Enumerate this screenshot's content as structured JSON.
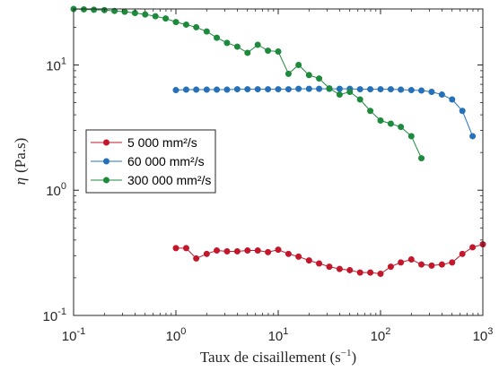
{
  "chart_data": {
    "type": "line",
    "xlabel_main": "Taux de cisaillement (s",
    "xlabel_sup": "−1",
    "xlabel_end": ")",
    "ylabel_sym": "η",
    "ylabel_unit": "(Pa.s)",
    "xscale": "log",
    "yscale": "log",
    "xlim": [
      0.1,
      1000
    ],
    "ylim": [
      0.1,
      28
    ],
    "x_ticks": [
      {
        "value": 0.1,
        "base": "10",
        "exp": "-1"
      },
      {
        "value": 1,
        "base": "10",
        "exp": "0"
      },
      {
        "value": 10,
        "base": "10",
        "exp": "1"
      },
      {
        "value": 100,
        "base": "10",
        "exp": "2"
      },
      {
        "value": 1000,
        "base": "10",
        "exp": "3"
      }
    ],
    "y_ticks": [
      {
        "value": 0.1,
        "base": "10",
        "exp": "-1"
      },
      {
        "value": 1,
        "base": "10",
        "exp": "0"
      },
      {
        "value": 10,
        "base": "10",
        "exp": "1"
      }
    ],
    "grid": false,
    "legend_position": "center-left",
    "series": [
      {
        "name": "5 000 mm²/s",
        "color": "#c3172b",
        "x": [
          1.0,
          1.26,
          1.58,
          2.0,
          2.51,
          3.16,
          3.98,
          5.01,
          6.31,
          7.94,
          10.0,
          12.6,
          15.8,
          20.0,
          25.1,
          31.6,
          39.8,
          50.1,
          63.1,
          79.4,
          100,
          126,
          158,
          200,
          251,
          316,
          398,
          501,
          631,
          794,
          1000
        ],
        "y": [
          0.345,
          0.345,
          0.285,
          0.31,
          0.33,
          0.325,
          0.325,
          0.33,
          0.33,
          0.32,
          0.335,
          0.31,
          0.295,
          0.275,
          0.26,
          0.245,
          0.235,
          0.23,
          0.22,
          0.22,
          0.215,
          0.245,
          0.265,
          0.28,
          0.255,
          0.25,
          0.255,
          0.265,
          0.31,
          0.35,
          0.37
        ]
      },
      {
        "name": "60 000 mm²/s",
        "color": "#2470b9",
        "x": [
          1.0,
          1.26,
          1.58,
          2.0,
          2.51,
          3.16,
          3.98,
          5.01,
          6.31,
          7.94,
          10.0,
          12.6,
          15.8,
          20.0,
          25.1,
          31.6,
          39.8,
          50.1,
          63.1,
          79.4,
          100,
          126,
          158,
          200,
          251,
          316,
          398,
          501,
          631,
          794
        ],
        "y": [
          6.3,
          6.35,
          6.35,
          6.35,
          6.35,
          6.35,
          6.4,
          6.4,
          6.4,
          6.4,
          6.4,
          6.4,
          6.45,
          6.45,
          6.45,
          6.45,
          6.45,
          6.45,
          6.4,
          6.4,
          6.4,
          6.4,
          6.35,
          6.3,
          6.25,
          6.1,
          5.8,
          5.3,
          4.3,
          2.7
        ]
      },
      {
        "name": "300 000 mm²/s",
        "color": "#1d8a3c",
        "x": [
          0.1,
          0.126,
          0.158,
          0.2,
          0.251,
          0.316,
          0.398,
          0.501,
          0.631,
          0.794,
          1.0,
          1.26,
          1.58,
          2.0,
          2.51,
          3.16,
          3.98,
          5.01,
          6.31,
          7.94,
          10.0,
          12.6,
          15.8,
          20.0,
          25.1,
          31.6,
          39.8,
          50.1,
          63.1,
          79.4,
          100,
          126,
          158,
          200,
          251
        ],
        "y": [
          28,
          27.8,
          27.6,
          27.4,
          27,
          26.6,
          26,
          25.3,
          24.5,
          23.5,
          22,
          21,
          20,
          18.5,
          16.5,
          15,
          14,
          12.5,
          14.5,
          13,
          12.8,
          8.5,
          10,
          8.3,
          7.8,
          6.5,
          5.8,
          6.1,
          5.3,
          4.3,
          3.6,
          3.4,
          3.2,
          2.7,
          1.8
        ]
      }
    ]
  }
}
